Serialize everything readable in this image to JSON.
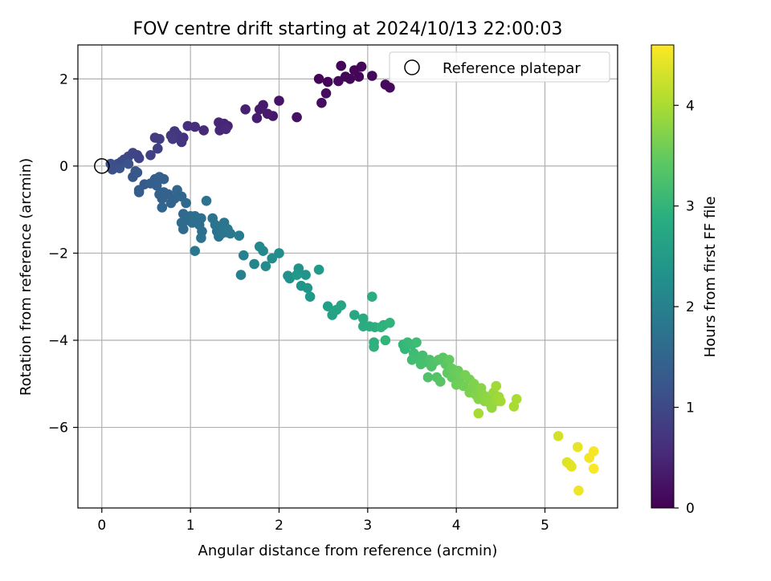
{
  "chart_data": {
    "type": "scatter",
    "title": "FOV centre drift starting at 2024/10/13 22:00:03",
    "xlabel": "Angular distance from reference (arcmin)",
    "ylabel": "Rotation from reference (arcmin)",
    "xlim": [
      -0.27,
      5.82
    ],
    "ylim": [
      -7.85,
      2.78
    ],
    "xticks": [
      0,
      1,
      2,
      3,
      4,
      5
    ],
    "yticks": [
      2,
      0,
      -2,
      -4,
      -6
    ],
    "xtick_labels": [
      "0",
      "1",
      "2",
      "3",
      "4",
      "5"
    ],
    "ytick_labels": [
      "2",
      "0",
      "−2",
      "−4",
      "−6"
    ],
    "grid": true,
    "legend": {
      "position": "top-right",
      "entries": [
        "Reference platepar"
      ]
    },
    "reference_point": {
      "x": 0,
      "y": 0
    },
    "colorbar": {
      "label": "Hours from first FF file",
      "range": [
        0,
        4.6
      ],
      "ticks": [
        0,
        1,
        2,
        3,
        4
      ],
      "colormap": "viridis"
    },
    "points": [
      {
        "x": 2.45,
        "y": 2.0,
        "t": 0.05
      },
      {
        "x": 2.55,
        "y": 1.93,
        "t": 0.05
      },
      {
        "x": 2.7,
        "y": 2.3,
        "t": 0.05
      },
      {
        "x": 2.75,
        "y": 2.05,
        "t": 0.06
      },
      {
        "x": 2.8,
        "y": 2.0,
        "t": 0.06
      },
      {
        "x": 2.85,
        "y": 2.2,
        "t": 0.07
      },
      {
        "x": 2.9,
        "y": 2.05,
        "t": 0.07
      },
      {
        "x": 2.93,
        "y": 2.28,
        "t": 0.08
      },
      {
        "x": 3.05,
        "y": 2.07,
        "t": 0.1
      },
      {
        "x": 2.67,
        "y": 1.95,
        "t": 0.1
      },
      {
        "x": 3.2,
        "y": 1.87,
        "t": 0.12
      },
      {
        "x": 3.25,
        "y": 1.8,
        "t": 0.12
      },
      {
        "x": 2.53,
        "y": 1.67,
        "t": 0.15
      },
      {
        "x": 2.48,
        "y": 1.45,
        "t": 0.15
      },
      {
        "x": 2.2,
        "y": 1.12,
        "t": 0.2
      },
      {
        "x": 2.0,
        "y": 1.5,
        "t": 0.25
      },
      {
        "x": 1.93,
        "y": 1.15,
        "t": 0.3
      },
      {
        "x": 1.87,
        "y": 1.2,
        "t": 0.33
      },
      {
        "x": 1.82,
        "y": 1.4,
        "t": 0.33
      },
      {
        "x": 1.78,
        "y": 1.3,
        "t": 0.35
      },
      {
        "x": 1.75,
        "y": 1.1,
        "t": 0.38
      },
      {
        "x": 1.62,
        "y": 1.3,
        "t": 0.4
      },
      {
        "x": 1.42,
        "y": 0.92,
        "t": 0.45
      },
      {
        "x": 1.38,
        "y": 0.97,
        "t": 0.48
      },
      {
        "x": 1.33,
        "y": 0.82,
        "t": 0.5
      },
      {
        "x": 1.32,
        "y": 1.0,
        "t": 0.5
      },
      {
        "x": 1.4,
        "y": 0.85,
        "t": 0.55
      },
      {
        "x": 1.15,
        "y": 0.82,
        "t": 0.55
      },
      {
        "x": 1.05,
        "y": 0.9,
        "t": 0.6
      },
      {
        "x": 0.97,
        "y": 0.92,
        "t": 0.62
      },
      {
        "x": 0.92,
        "y": 0.65,
        "t": 0.65
      },
      {
        "x": 0.9,
        "y": 0.55,
        "t": 0.7
      },
      {
        "x": 0.82,
        "y": 0.8,
        "t": 0.72
      },
      {
        "x": 0.85,
        "y": 0.72,
        "t": 0.74
      },
      {
        "x": 0.78,
        "y": 0.7,
        "t": 0.76
      },
      {
        "x": 0.8,
        "y": 0.62,
        "t": 0.78
      },
      {
        "x": 0.6,
        "y": 0.65,
        "t": 0.8
      },
      {
        "x": 0.65,
        "y": 0.62,
        "t": 0.82
      },
      {
        "x": 0.63,
        "y": 0.4,
        "t": 0.85
      },
      {
        "x": 0.55,
        "y": 0.25,
        "t": 0.88
      },
      {
        "x": 0.4,
        "y": 0.25,
        "t": 0.9
      },
      {
        "x": 0.42,
        "y": 0.18,
        "t": 0.92
      },
      {
        "x": 0.35,
        "y": 0.3,
        "t": 0.95
      },
      {
        "x": 0.3,
        "y": 0.22,
        "t": 0.97
      },
      {
        "x": 0.25,
        "y": 0.15,
        "t": 1.0
      },
      {
        "x": 0.22,
        "y": 0.1,
        "t": 1.02
      },
      {
        "x": 0.18,
        "y": 0.05,
        "t": 1.05
      },
      {
        "x": 0.15,
        "y": 0.0,
        "t": 1.08
      },
      {
        "x": 0.1,
        "y": 0.05,
        "t": 1.1
      },
      {
        "x": 0.12,
        "y": -0.08,
        "t": 1.12
      },
      {
        "x": 0.2,
        "y": -0.05,
        "t": 1.15
      },
      {
        "x": 0.3,
        "y": 0.05,
        "t": 1.15
      },
      {
        "x": 0.38,
        "y": -0.12,
        "t": 1.2
      },
      {
        "x": 0.35,
        "y": -0.25,
        "t": 1.22
      },
      {
        "x": 0.4,
        "y": -0.15,
        "t": 1.25
      },
      {
        "x": 0.48,
        "y": -0.42,
        "t": 1.3
      },
      {
        "x": 0.42,
        "y": -0.55,
        "t": 1.32
      },
      {
        "x": 0.42,
        "y": -0.6,
        "t": 1.33
      },
      {
        "x": 0.55,
        "y": -0.4,
        "t": 1.35
      },
      {
        "x": 0.6,
        "y": -0.3,
        "t": 1.36
      },
      {
        "x": 0.65,
        "y": -0.25,
        "t": 1.38
      },
      {
        "x": 0.7,
        "y": -0.3,
        "t": 1.39
      },
      {
        "x": 0.62,
        "y": -0.45,
        "t": 1.4
      },
      {
        "x": 0.65,
        "y": -0.65,
        "t": 1.42
      },
      {
        "x": 0.68,
        "y": -0.75,
        "t": 1.43
      },
      {
        "x": 0.7,
        "y": -0.6,
        "t": 1.44
      },
      {
        "x": 0.75,
        "y": -0.65,
        "t": 1.45
      },
      {
        "x": 0.78,
        "y": -0.85,
        "t": 1.46
      },
      {
        "x": 0.82,
        "y": -0.75,
        "t": 1.47
      },
      {
        "x": 0.68,
        "y": -0.95,
        "t": 1.48
      },
      {
        "x": 0.85,
        "y": -0.55,
        "t": 1.5
      },
      {
        "x": 0.9,
        "y": -0.7,
        "t": 1.52
      },
      {
        "x": 0.95,
        "y": -0.85,
        "t": 1.53
      },
      {
        "x": 0.92,
        "y": -1.1,
        "t": 1.55
      },
      {
        "x": 0.95,
        "y": -1.25,
        "t": 1.56
      },
      {
        "x": 0.98,
        "y": -1.2,
        "t": 1.57
      },
      {
        "x": 0.9,
        "y": -1.3,
        "t": 1.58
      },
      {
        "x": 0.92,
        "y": -1.45,
        "t": 1.6
      },
      {
        "x": 1.0,
        "y": -1.15,
        "t": 1.62
      },
      {
        "x": 1.02,
        "y": -1.3,
        "t": 1.64
      },
      {
        "x": 1.05,
        "y": -1.15,
        "t": 1.65
      },
      {
        "x": 1.08,
        "y": -1.25,
        "t": 1.66
      },
      {
        "x": 1.12,
        "y": -1.2,
        "t": 1.67
      },
      {
        "x": 1.1,
        "y": -1.35,
        "t": 1.68
      },
      {
        "x": 1.13,
        "y": -1.5,
        "t": 1.7
      },
      {
        "x": 1.12,
        "y": -1.65,
        "t": 1.72
      },
      {
        "x": 1.18,
        "y": -0.8,
        "t": 1.73
      },
      {
        "x": 1.25,
        "y": -1.2,
        "t": 1.74
      },
      {
        "x": 1.28,
        "y": -1.35,
        "t": 1.75
      },
      {
        "x": 1.3,
        "y": -1.5,
        "t": 1.76
      },
      {
        "x": 1.32,
        "y": -1.62,
        "t": 1.77
      },
      {
        "x": 1.35,
        "y": -1.4,
        "t": 1.78
      },
      {
        "x": 1.38,
        "y": -1.3,
        "t": 1.79
      },
      {
        "x": 1.35,
        "y": -1.55,
        "t": 1.8
      },
      {
        "x": 1.4,
        "y": -1.52,
        "t": 1.81
      },
      {
        "x": 1.42,
        "y": -1.45,
        "t": 1.82
      },
      {
        "x": 1.45,
        "y": -1.55,
        "t": 1.83
      },
      {
        "x": 1.05,
        "y": -1.95,
        "t": 1.85
      },
      {
        "x": 1.55,
        "y": -1.6,
        "t": 1.9
      },
      {
        "x": 1.57,
        "y": -2.5,
        "t": 2.0
      },
      {
        "x": 1.6,
        "y": -2.05,
        "t": 2.02
      },
      {
        "x": 1.72,
        "y": -2.25,
        "t": 2.1
      },
      {
        "x": 1.78,
        "y": -1.85,
        "t": 2.15
      },
      {
        "x": 1.82,
        "y": -1.95,
        "t": 2.18
      },
      {
        "x": 1.85,
        "y": -2.3,
        "t": 2.2
      },
      {
        "x": 1.92,
        "y": -2.12,
        "t": 2.22
      },
      {
        "x": 2.0,
        "y": -2.0,
        "t": 2.25
      },
      {
        "x": 2.1,
        "y": -2.52,
        "t": 2.3
      },
      {
        "x": 2.12,
        "y": -2.58,
        "t": 2.32
      },
      {
        "x": 2.22,
        "y": -2.35,
        "t": 2.35
      },
      {
        "x": 2.25,
        "y": -2.75,
        "t": 2.38
      },
      {
        "x": 2.3,
        "y": -2.5,
        "t": 2.4
      },
      {
        "x": 2.32,
        "y": -2.8,
        "t": 2.42
      },
      {
        "x": 2.35,
        "y": -3.0,
        "t": 2.45
      },
      {
        "x": 2.2,
        "y": -2.5,
        "t": 2.46
      },
      {
        "x": 2.45,
        "y": -2.38,
        "t": 2.5
      },
      {
        "x": 2.55,
        "y": -3.22,
        "t": 2.6
      },
      {
        "x": 2.6,
        "y": -3.42,
        "t": 2.65
      },
      {
        "x": 2.65,
        "y": -3.3,
        "t": 2.68
      },
      {
        "x": 2.7,
        "y": -3.2,
        "t": 2.7
      },
      {
        "x": 2.85,
        "y": -3.42,
        "t": 2.75
      },
      {
        "x": 2.95,
        "y": -3.5,
        "t": 2.8
      },
      {
        "x": 2.95,
        "y": -3.68,
        "t": 2.82
      },
      {
        "x": 3.05,
        "y": -3.0,
        "t": 2.85
      },
      {
        "x": 3.02,
        "y": -3.68,
        "t": 2.86
      },
      {
        "x": 3.08,
        "y": -3.7,
        "t": 2.88
      },
      {
        "x": 3.07,
        "y": -4.05,
        "t": 2.9
      },
      {
        "x": 3.07,
        "y": -4.15,
        "t": 2.92
      },
      {
        "x": 3.15,
        "y": -3.7,
        "t": 2.94
      },
      {
        "x": 3.18,
        "y": -3.65,
        "t": 2.96
      },
      {
        "x": 3.25,
        "y": -3.6,
        "t": 2.98
      },
      {
        "x": 3.2,
        "y": -4.0,
        "t": 3.0
      },
      {
        "x": 3.4,
        "y": -4.1,
        "t": 3.05
      },
      {
        "x": 3.42,
        "y": -4.2,
        "t": 3.07
      },
      {
        "x": 3.45,
        "y": -4.05,
        "t": 3.1
      },
      {
        "x": 3.5,
        "y": -4.1,
        "t": 3.12
      },
      {
        "x": 3.52,
        "y": -4.3,
        "t": 3.14
      },
      {
        "x": 3.55,
        "y": -4.05,
        "t": 3.15
      },
      {
        "x": 3.5,
        "y": -4.45,
        "t": 3.17
      },
      {
        "x": 3.58,
        "y": -4.4,
        "t": 3.18
      },
      {
        "x": 3.62,
        "y": -4.35,
        "t": 3.2
      },
      {
        "x": 3.65,
        "y": -4.5,
        "t": 3.22
      },
      {
        "x": 3.6,
        "y": -4.55,
        "t": 3.24
      },
      {
        "x": 3.7,
        "y": -4.45,
        "t": 3.26
      },
      {
        "x": 3.72,
        "y": -4.6,
        "t": 3.28
      },
      {
        "x": 3.75,
        "y": -4.5,
        "t": 3.3
      },
      {
        "x": 3.68,
        "y": -4.85,
        "t": 3.32
      },
      {
        "x": 3.78,
        "y": -4.85,
        "t": 3.34
      },
      {
        "x": 3.8,
        "y": -4.45,
        "t": 3.36
      },
      {
        "x": 3.82,
        "y": -4.95,
        "t": 3.38
      },
      {
        "x": 3.85,
        "y": -4.4,
        "t": 3.4
      },
      {
        "x": 3.88,
        "y": -4.55,
        "t": 3.42
      },
      {
        "x": 3.9,
        "y": -4.75,
        "t": 3.44
      },
      {
        "x": 3.92,
        "y": -4.45,
        "t": 3.46
      },
      {
        "x": 3.95,
        "y": -4.85,
        "t": 3.48
      },
      {
        "x": 3.95,
        "y": -4.65,
        "t": 3.5
      },
      {
        "x": 4.0,
        "y": -4.75,
        "t": 3.52
      },
      {
        "x": 4.02,
        "y": -4.7,
        "t": 3.54
      },
      {
        "x": 4.05,
        "y": -4.85,
        "t": 3.56
      },
      {
        "x": 4.0,
        "y": -5.02,
        "t": 3.58
      },
      {
        "x": 4.08,
        "y": -5.05,
        "t": 3.6
      },
      {
        "x": 4.1,
        "y": -4.8,
        "t": 3.62
      },
      {
        "x": 4.15,
        "y": -4.9,
        "t": 3.64
      },
      {
        "x": 4.18,
        "y": -5.1,
        "t": 3.66
      },
      {
        "x": 4.15,
        "y": -5.2,
        "t": 3.68
      },
      {
        "x": 4.2,
        "y": -5.0,
        "t": 3.7
      },
      {
        "x": 4.22,
        "y": -5.25,
        "t": 3.72
      },
      {
        "x": 4.25,
        "y": -5.35,
        "t": 3.74
      },
      {
        "x": 4.28,
        "y": -5.1,
        "t": 3.76
      },
      {
        "x": 4.3,
        "y": -5.25,
        "t": 3.78
      },
      {
        "x": 4.32,
        "y": -5.4,
        "t": 3.8
      },
      {
        "x": 4.35,
        "y": -5.3,
        "t": 3.82
      },
      {
        "x": 4.38,
        "y": -5.45,
        "t": 3.84
      },
      {
        "x": 4.4,
        "y": -5.55,
        "t": 3.86
      },
      {
        "x": 4.42,
        "y": -5.2,
        "t": 3.88
      },
      {
        "x": 4.45,
        "y": -5.4,
        "t": 3.9
      },
      {
        "x": 4.48,
        "y": -5.3,
        "t": 3.92
      },
      {
        "x": 4.45,
        "y": -5.05,
        "t": 3.94
      },
      {
        "x": 4.5,
        "y": -5.4,
        "t": 3.96
      },
      {
        "x": 4.25,
        "y": -5.68,
        "t": 3.98
      },
      {
        "x": 4.65,
        "y": -5.52,
        "t": 4.0
      },
      {
        "x": 4.68,
        "y": -5.35,
        "t": 4.02
      },
      {
        "x": 5.15,
        "y": -6.2,
        "t": 4.3
      },
      {
        "x": 5.25,
        "y": -6.8,
        "t": 4.35
      },
      {
        "x": 5.28,
        "y": -6.85,
        "t": 4.4
      },
      {
        "x": 5.3,
        "y": -6.9,
        "t": 4.42
      },
      {
        "x": 5.37,
        "y": -6.45,
        "t": 4.45
      },
      {
        "x": 5.38,
        "y": -7.45,
        "t": 4.5
      },
      {
        "x": 5.5,
        "y": -6.7,
        "t": 4.52
      },
      {
        "x": 5.55,
        "y": -6.55,
        "t": 4.55
      },
      {
        "x": 5.55,
        "y": -6.95,
        "t": 4.58
      }
    ]
  }
}
